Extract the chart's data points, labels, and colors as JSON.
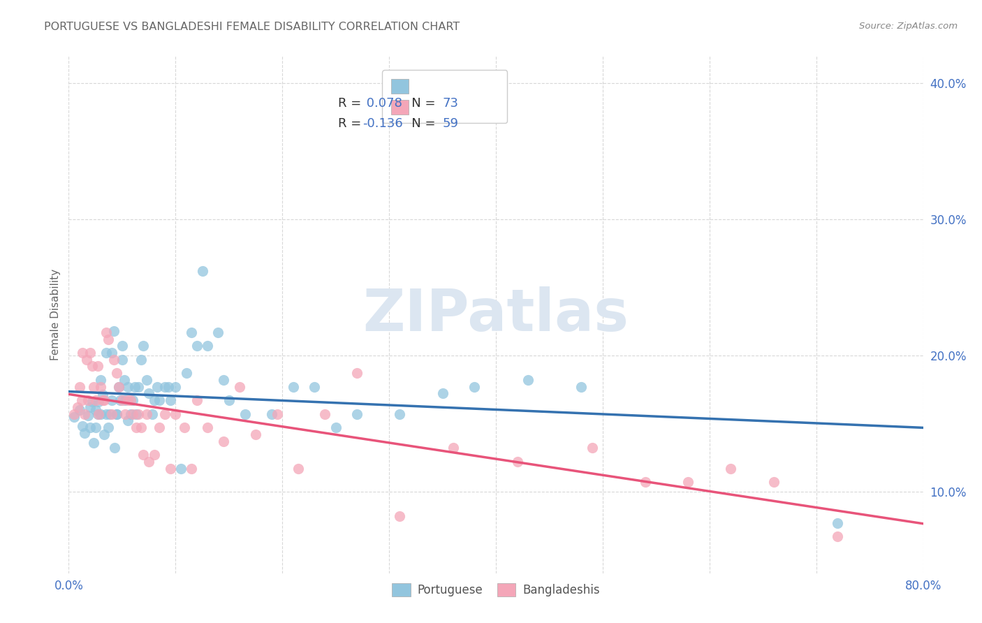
{
  "title": "PORTUGUESE VS BANGLADESHI FEMALE DISABILITY CORRELATION CHART",
  "source": "Source: ZipAtlas.com",
  "ylabel": "Female Disability",
  "watermark": "ZIPatlas",
  "xlim": [
    0.0,
    0.8
  ],
  "ylim": [
    0.04,
    0.42
  ],
  "xtick_vals": [
    0.0,
    0.1,
    0.2,
    0.3,
    0.4,
    0.5,
    0.6,
    0.7,
    0.8
  ],
  "xtick_labels": [
    "0.0%",
    "",
    "",
    "",
    "",
    "",
    "",
    "",
    "80.0%"
  ],
  "ytick_vals": [
    0.1,
    0.2,
    0.3,
    0.4
  ],
  "ytick_labels": [
    "10.0%",
    "20.0%",
    "30.0%",
    "40.0%"
  ],
  "blue_color": "#92c5de",
  "pink_color": "#f4a6b8",
  "blue_line_color": "#3572b0",
  "pink_line_color": "#e8547a",
  "title_color": "#666666",
  "axis_tick_color": "#4472c4",
  "blue_R": 0.078,
  "blue_N": 73,
  "pink_R": -0.136,
  "pink_N": 59,
  "portuguese_x": [
    0.005,
    0.01,
    0.013,
    0.015,
    0.018,
    0.02,
    0.02,
    0.022,
    0.023,
    0.025,
    0.025,
    0.027,
    0.028,
    0.03,
    0.03,
    0.032,
    0.033,
    0.035,
    0.035,
    0.037,
    0.038,
    0.04,
    0.04,
    0.042,
    0.043,
    0.045,
    0.045,
    0.047,
    0.048,
    0.05,
    0.05,
    0.052,
    0.053,
    0.055,
    0.055,
    0.058,
    0.06,
    0.062,
    0.063,
    0.065,
    0.068,
    0.07,
    0.073,
    0.075,
    0.078,
    0.08,
    0.083,
    0.085,
    0.09,
    0.093,
    0.095,
    0.1,
    0.105,
    0.11,
    0.115,
    0.12,
    0.125,
    0.13,
    0.14,
    0.145,
    0.15,
    0.165,
    0.19,
    0.21,
    0.23,
    0.25,
    0.27,
    0.31,
    0.35,
    0.38,
    0.43,
    0.48,
    0.72
  ],
  "portuguese_y": [
    0.155,
    0.16,
    0.148,
    0.143,
    0.156,
    0.147,
    0.162,
    0.166,
    0.136,
    0.16,
    0.147,
    0.157,
    0.166,
    0.182,
    0.157,
    0.171,
    0.142,
    0.157,
    0.202,
    0.147,
    0.157,
    0.202,
    0.167,
    0.218,
    0.132,
    0.157,
    0.157,
    0.177,
    0.167,
    0.197,
    0.207,
    0.182,
    0.167,
    0.177,
    0.152,
    0.157,
    0.167,
    0.177,
    0.157,
    0.177,
    0.197,
    0.207,
    0.182,
    0.172,
    0.157,
    0.167,
    0.177,
    0.167,
    0.177,
    0.177,
    0.167,
    0.177,
    0.117,
    0.187,
    0.217,
    0.207,
    0.262,
    0.207,
    0.217,
    0.182,
    0.167,
    0.157,
    0.157,
    0.177,
    0.177,
    0.147,
    0.157,
    0.157,
    0.172,
    0.177,
    0.182,
    0.177,
    0.077
  ],
  "bangladeshi_x": [
    0.005,
    0.008,
    0.01,
    0.012,
    0.013,
    0.015,
    0.017,
    0.018,
    0.02,
    0.022,
    0.023,
    0.025,
    0.027,
    0.028,
    0.03,
    0.032,
    0.033,
    0.035,
    0.037,
    0.04,
    0.042,
    0.045,
    0.047,
    0.05,
    0.053,
    0.055,
    0.058,
    0.06,
    0.063,
    0.065,
    0.068,
    0.07,
    0.073,
    0.075,
    0.08,
    0.085,
    0.09,
    0.095,
    0.1,
    0.108,
    0.115,
    0.12,
    0.13,
    0.145,
    0.16,
    0.175,
    0.195,
    0.215,
    0.24,
    0.27,
    0.31,
    0.36,
    0.42,
    0.49,
    0.54,
    0.58,
    0.62,
    0.66,
    0.72
  ],
  "bangladeshi_y": [
    0.157,
    0.162,
    0.177,
    0.167,
    0.202,
    0.157,
    0.197,
    0.167,
    0.202,
    0.192,
    0.177,
    0.167,
    0.192,
    0.157,
    0.177,
    0.167,
    0.167,
    0.217,
    0.212,
    0.157,
    0.197,
    0.187,
    0.177,
    0.167,
    0.157,
    0.167,
    0.167,
    0.157,
    0.147,
    0.157,
    0.147,
    0.127,
    0.157,
    0.122,
    0.127,
    0.147,
    0.157,
    0.117,
    0.157,
    0.147,
    0.117,
    0.167,
    0.147,
    0.137,
    0.177,
    0.142,
    0.157,
    0.117,
    0.157,
    0.187,
    0.082,
    0.132,
    0.122,
    0.132,
    0.107,
    0.107,
    0.117,
    0.107,
    0.067
  ],
  "background_color": "#ffffff",
  "grid_color": "#d8d8d8",
  "fig_background": "#ffffff",
  "watermark_color": "#dce6f1"
}
